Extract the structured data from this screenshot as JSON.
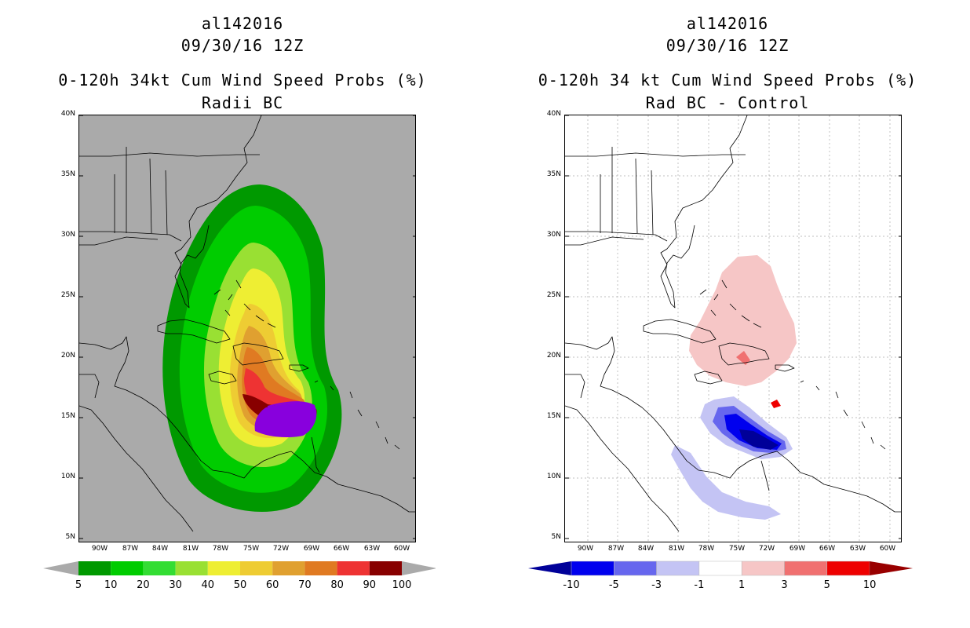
{
  "left": {
    "storm_id": "al142016",
    "datetime": "09/30/16 12Z",
    "product": "0-120h 34kt Cum Wind Speed Probs (%)",
    "subtitle": "Radii BC",
    "lat_labels": [
      "40N",
      "35N",
      "30N",
      "25N",
      "20N",
      "15N",
      "10N",
      "5N"
    ],
    "lon_labels": [
      "90W",
      "87W",
      "84W",
      "81W",
      "78W",
      "75W",
      "72W",
      "69W",
      "66W",
      "63W",
      "60W"
    ],
    "colorbar": {
      "labels": [
        "5",
        "10",
        "20",
        "30",
        "40",
        "50",
        "60",
        "70",
        "80",
        "90",
        "100"
      ],
      "colors": [
        "#009900",
        "#00cc00",
        "#33dd33",
        "#99e033",
        "#eeee33",
        "#eecc33",
        "#e0a030",
        "#e07a22",
        "#ee3333",
        "#880000",
        "#8800dd"
      ],
      "end_color": "#aaaaaa"
    }
  },
  "right": {
    "storm_id": "al142016",
    "datetime": "09/30/16 12Z",
    "product": "0-120h 34 kt Cum Wind Speed Probs (%)",
    "subtitle": "Rad BC - Control",
    "lat_labels": [
      "40N",
      "35N",
      "30N",
      "25N",
      "20N",
      "15N",
      "10N",
      "5N"
    ],
    "lon_labels": [
      "90W",
      "87W",
      "84W",
      "81W",
      "78W",
      "75W",
      "72W",
      "69W",
      "66W",
      "63W",
      "60W"
    ],
    "colorbar": {
      "labels": [
        "-10",
        "-5",
        "-3",
        "-1",
        "1",
        "3",
        "5",
        "10"
      ],
      "colors": [
        "#000099",
        "#0000ee",
        "#6666ee",
        "#c4c4f4",
        "#ffffff",
        "#f6c6c6",
        "#f07070",
        "#ee0000",
        "#990000"
      ]
    }
  }
}
